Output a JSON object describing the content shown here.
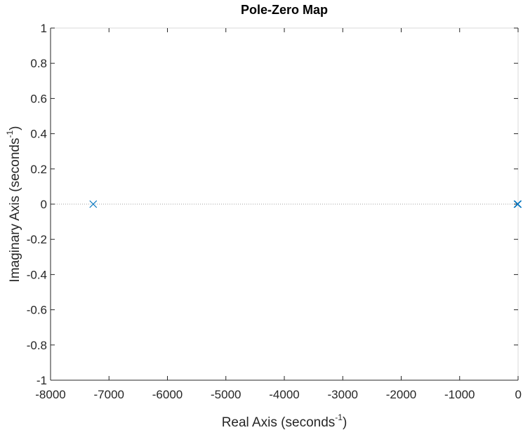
{
  "chart_data": {
    "type": "scatter",
    "title": "Pole-Zero Map",
    "xlabel": "Real Axis (seconds",
    "ylabel": "Imaginary Axis (seconds",
    "label_exponent": "-1",
    "label_close": ")",
    "xlim": [
      -8000,
      0
    ],
    "ylim": [
      -1,
      1
    ],
    "xticks": [
      -8000,
      -7000,
      -6000,
      -5000,
      -4000,
      -3000,
      -2000,
      -1000,
      0
    ],
    "yticks": [
      1,
      0.8,
      0.6,
      0.4,
      0.2,
      0,
      -0.2,
      -0.4,
      -0.6,
      -0.8,
      -1
    ],
    "xtick_labels": [
      "-8000",
      "-7000",
      "-6000",
      "-5000",
      "-4000",
      "-3000",
      "-2000",
      "-1000",
      "0"
    ],
    "ytick_labels": [
      "1",
      "0.8",
      "0.6",
      "0.4",
      "0.2",
      "0",
      "-0.2",
      "-0.4",
      "-0.6",
      "-0.8",
      "-1"
    ],
    "grid": false,
    "zero_line": "dotted",
    "series": [
      {
        "marker": "x",
        "color": "#0072BD",
        "points": [
          {
            "x": -7270,
            "y": 0
          },
          {
            "x": -12,
            "y": 0
          },
          {
            "x": -2,
            "y": 0
          }
        ]
      }
    ]
  },
  "colors": {
    "axis": "#262626",
    "box": "#d9d9d9",
    "marker": "#0072BD",
    "zero_line": "#a0a0a0"
  }
}
